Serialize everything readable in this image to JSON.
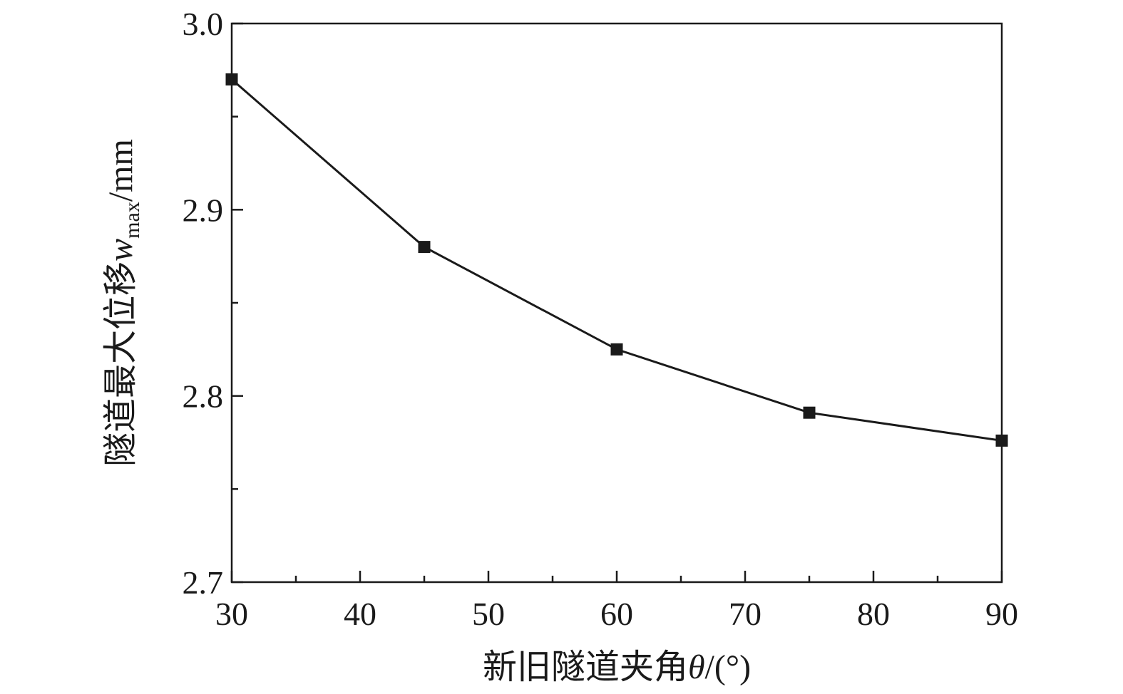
{
  "chart_data": {
    "type": "line",
    "x": [
      30,
      45,
      60,
      75,
      90
    ],
    "series": [
      {
        "values": [
          2.97,
          2.88,
          2.825,
          2.791,
          2.776
        ]
      }
    ],
    "xlim": [
      30,
      90
    ],
    "ylim": [
      2.7,
      3.0
    ],
    "xticks": [
      30,
      40,
      50,
      60,
      70,
      80,
      90
    ],
    "xticks_minor": [
      35,
      45,
      55,
      65,
      75,
      85
    ],
    "yticks": [
      2.7,
      2.8,
      2.9,
      3.0
    ],
    "yticks_minor": [
      2.75,
      2.85,
      2.95
    ],
    "xtick_labels": [
      "30",
      "40",
      "50",
      "60",
      "70",
      "80",
      "90"
    ],
    "ytick_labels": [
      "2.7",
      "2.8",
      "2.9",
      "3.0"
    ],
    "xlabel": {
      "main": "新旧隧道夹角",
      "symbol": "θ",
      "unit": "/(°)"
    },
    "ylabel": {
      "main": "隧道最大位移",
      "symbol": "w",
      "subscript": "max",
      "unit": "/mm"
    },
    "grid": false,
    "legend": "none",
    "marker": "square",
    "color": "#1a1a1a"
  }
}
